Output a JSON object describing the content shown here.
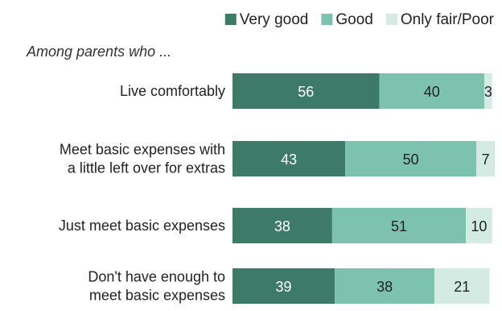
{
  "chart_data": {
    "type": "bar",
    "orientation": "horizontal",
    "stacked": true,
    "subtitle": "Among parents who ...",
    "categories": [
      [
        "Live comfortably"
      ],
      [
        "Meet basic expenses with",
        "a little left over for extras"
      ],
      [
        "Just meet basic expenses"
      ],
      [
        "Don't have enough to",
        "meet basic expenses"
      ]
    ],
    "series": [
      {
        "name": "Very good",
        "color": "#3d7a68",
        "label_color": "#ffffff",
        "values": [
          56,
          43,
          38,
          39
        ]
      },
      {
        "name": "Good",
        "color": "#7cc2ae",
        "label_color": "#222222",
        "values": [
          40,
          50,
          51,
          38
        ]
      },
      {
        "name": "Only fair/Poor",
        "color": "#d4ebe4",
        "label_color": "#222222",
        "values": [
          3,
          7,
          10,
          21
        ]
      }
    ],
    "xlim": [
      0,
      100
    ],
    "grid": false,
    "legend_position": "top-right"
  }
}
